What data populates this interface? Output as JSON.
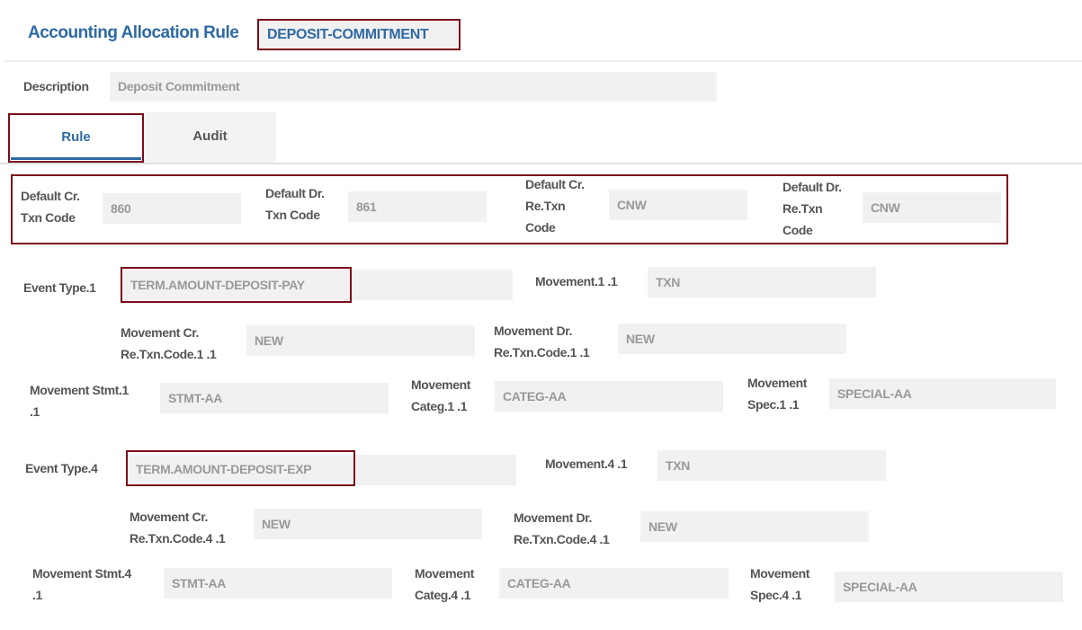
{
  "header": {
    "title": "Accounting Allocation Rule",
    "record_id": "DEPOSIT-COMMITMENT"
  },
  "description": {
    "label": "Description",
    "value": "Deposit Commitment"
  },
  "tabs": [
    {
      "label": "Rule",
      "active": true
    },
    {
      "label": "Audit",
      "active": false
    }
  ],
  "defaults": [
    {
      "label": "Default Cr.\nTxn Code",
      "value": "860"
    },
    {
      "label": "Default Dr.\nTxn Code",
      "value": "861"
    },
    {
      "label": "Default Cr.\nRe.Txn\nCode",
      "value": "CNW"
    },
    {
      "label": "Default Dr.\nRe.Txn\nCode",
      "value": "CNW"
    }
  ],
  "events": [
    {
      "event_type": {
        "label": "Event Type.1",
        "value": "TERM.AMOUNT-DEPOSIT-PAY"
      },
      "movement": {
        "label": "Movement.1 .1",
        "value": "TXN"
      },
      "movement_cr": {
        "label": "Movement Cr.\nRe.Txn.Code.1 .1",
        "value": "NEW"
      },
      "movement_dr": {
        "label": "Movement Dr.\nRe.Txn.Code.1 .1",
        "value": "NEW"
      },
      "movement_stmt": {
        "label": "Movement Stmt.1\n.1",
        "value": "STMT-AA"
      },
      "movement_categ": {
        "label": "Movement\nCateg.1 .1",
        "value": "CATEG-AA"
      },
      "movement_spec": {
        "label": "Movement\nSpec.1 .1",
        "value": "SPECIAL-AA"
      }
    },
    {
      "event_type": {
        "label": "Event Type.4",
        "value": "TERM.AMOUNT-DEPOSIT-EXP"
      },
      "movement": {
        "label": "Movement.4 .1",
        "value": "TXN"
      },
      "movement_cr": {
        "label": "Movement Cr.\nRe.Txn.Code.4 .1",
        "value": "NEW"
      },
      "movement_dr": {
        "label": "Movement Dr.\nRe.Txn.Code.4 .1",
        "value": "NEW"
      },
      "movement_stmt": {
        "label": "Movement Stmt.4\n.1",
        "value": "STMT-AA"
      },
      "movement_categ": {
        "label": "Movement\nCateg.4 .1",
        "value": "CATEG-AA"
      },
      "movement_spec": {
        "label": "Movement\nSpec.4 .1",
        "value": "SPECIAL-AA"
      }
    }
  ],
  "colors": {
    "accent": "#2f6aa3",
    "highlight_outline": "#7b0c1a",
    "field_bg": "#f1f1f1"
  }
}
